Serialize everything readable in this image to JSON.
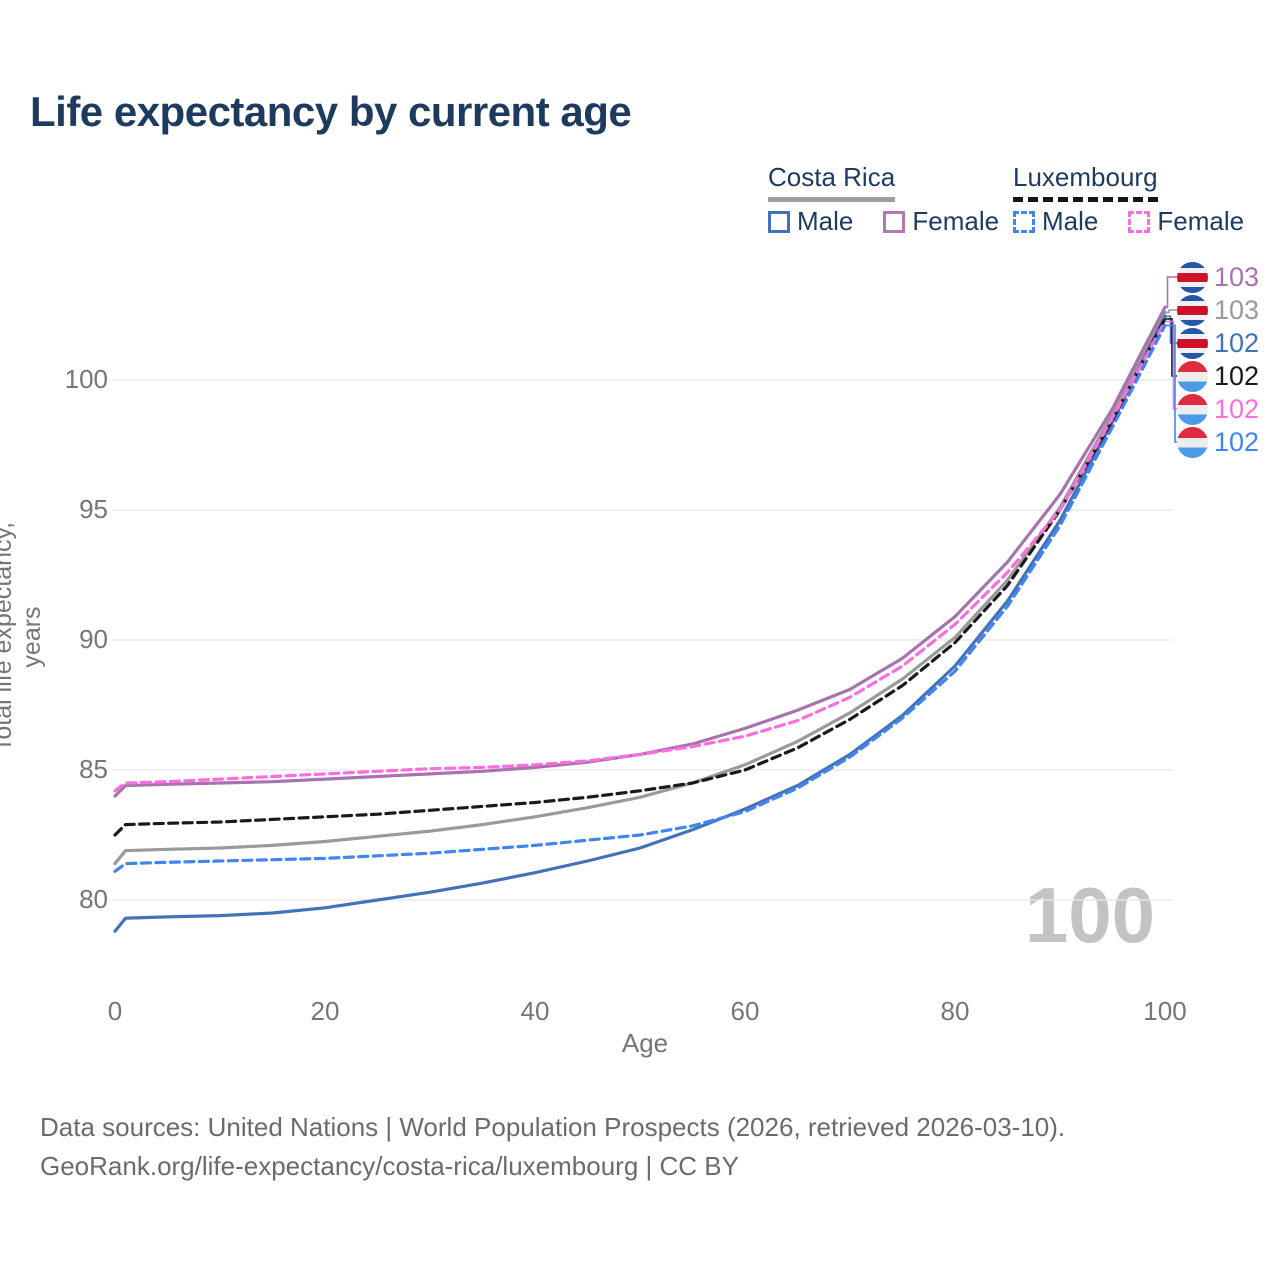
{
  "title": "Life expectancy by current age",
  "legend": {
    "groups": [
      {
        "label": "Costa Rica",
        "line_style": "solid",
        "underline_color": "#9e9e9e",
        "items": [
          {
            "label": "Male",
            "color": "#4273b8"
          },
          {
            "label": "Female",
            "color": "#b278b2"
          }
        ]
      },
      {
        "label": "Luxembourg",
        "line_style": "dashed",
        "underline_color": "#141414",
        "items": [
          {
            "label": "Male",
            "color": "#4285f0"
          },
          {
            "label": "Female",
            "color": "#fb6ee1"
          }
        ]
      }
    ]
  },
  "chart_data": {
    "type": "line",
    "title": "Life expectancy by current age",
    "xlabel": "Age",
    "ylabel": "Total life expectancy, years",
    "x_ticks": [
      0,
      20,
      40,
      60,
      80,
      100
    ],
    "y_ticks": [
      80,
      85,
      90,
      95,
      100
    ],
    "xlim": [
      0,
      100
    ],
    "ylim": [
      78,
      103.5
    ],
    "grid": "horizontal-only",
    "legend_position": "top-right",
    "x": [
      0,
      1,
      5,
      10,
      15,
      20,
      25,
      30,
      35,
      40,
      45,
      50,
      55,
      60,
      65,
      70,
      75,
      80,
      85,
      90,
      95,
      100
    ],
    "series": [
      {
        "id": "costa-rica-total",
        "name": "Costa Rica Both sexes",
        "country": "Costa Rica",
        "sex": "Both",
        "color": "#9a9a9a",
        "dashed": false,
        "values": [
          81.4,
          81.9,
          81.95,
          82.0,
          82.1,
          82.25,
          82.45,
          82.65,
          82.9,
          83.2,
          83.55,
          83.95,
          84.5,
          85.2,
          86.1,
          87.2,
          88.5,
          90.1,
          92.3,
          95.1,
          98.7,
          102.6
        ]
      },
      {
        "id": "costa-rica-female",
        "name": "Costa Rica Female",
        "country": "Costa Rica",
        "sex": "Female",
        "color": "#a872ae",
        "dashed": false,
        "values": [
          84.0,
          84.4,
          84.45,
          84.5,
          84.55,
          84.65,
          84.75,
          84.85,
          84.95,
          85.1,
          85.3,
          85.6,
          86.0,
          86.6,
          87.3,
          88.1,
          89.3,
          90.9,
          93.0,
          95.6,
          98.9,
          102.8
        ]
      },
      {
        "id": "costa-rica-male",
        "name": "Costa Rica Male",
        "country": "Costa Rica",
        "sex": "Male",
        "color": "#4273b8",
        "dashed": false,
        "values": [
          78.8,
          79.3,
          79.35,
          79.4,
          79.5,
          79.7,
          80.0,
          80.3,
          80.65,
          81.05,
          81.5,
          82.0,
          82.7,
          83.5,
          84.4,
          85.6,
          87.1,
          89.0,
          91.5,
          94.6,
          98.4,
          102.45
        ]
      },
      {
        "id": "luxembourg-total",
        "name": "Luxembourg Both sexes",
        "country": "Luxembourg",
        "sex": "Both",
        "color": "#1a1a1a",
        "dashed": true,
        "values": [
          82.5,
          82.9,
          82.95,
          83.0,
          83.1,
          83.2,
          83.3,
          83.45,
          83.6,
          83.75,
          83.95,
          84.2,
          84.5,
          85.0,
          85.85,
          86.95,
          88.25,
          89.9,
          92.1,
          95.0,
          98.45,
          102.35
        ]
      },
      {
        "id": "luxembourg-female",
        "name": "Luxembourg Female",
        "country": "Luxembourg",
        "sex": "Female",
        "color": "#fb6ee1",
        "dashed": true,
        "values": [
          84.2,
          84.5,
          84.55,
          84.65,
          84.75,
          84.85,
          84.95,
          85.05,
          85.1,
          85.2,
          85.35,
          85.6,
          85.9,
          86.3,
          86.9,
          87.8,
          89.0,
          90.6,
          92.6,
          95.0,
          98.55,
          102.25
        ]
      },
      {
        "id": "luxembourg-male",
        "name": "Luxembourg Male",
        "country": "Luxembourg",
        "sex": "Male",
        "color": "#4285f0",
        "dashed": true,
        "values": [
          81.1,
          81.4,
          81.45,
          81.5,
          81.55,
          81.6,
          81.7,
          81.8,
          81.95,
          82.1,
          82.3,
          82.5,
          82.85,
          83.4,
          84.3,
          85.5,
          87.0,
          88.8,
          91.3,
          94.4,
          98.2,
          102.1
        ]
      }
    ]
  },
  "end_labels": [
    {
      "value": "103",
      "series": 1,
      "flag": "costa_rica"
    },
    {
      "value": "103",
      "series": 0,
      "flag": "costa_rica"
    },
    {
      "value": "102",
      "series": 2,
      "flag": "costa_rica"
    },
    {
      "value": "102",
      "series": 3,
      "flag": "luxembourg"
    },
    {
      "value": "102",
      "series": 4,
      "flag": "luxembourg"
    },
    {
      "value": "102",
      "series": 5,
      "flag": "luxembourg"
    }
  ],
  "flags": {
    "costa_rica": {
      "name": "Costa Rica flag",
      "stripes": [
        [
          "#2457a7",
          0,
          19
        ],
        [
          "#eef0f2",
          19,
          35
        ],
        [
          "#ce1126",
          35,
          65
        ],
        [
          "#eef0f2",
          65,
          81
        ],
        [
          "#2457a7",
          81,
          100
        ]
      ]
    },
    "luxembourg": {
      "name": "Luxembourg flag",
      "stripes": [
        [
          "#e12a3f",
          0,
          35
        ],
        [
          "#ededed",
          35,
          66
        ],
        [
          "#4d9ae8",
          66,
          100
        ]
      ]
    }
  },
  "watermark": "100",
  "footer": {
    "line1": "Data sources: United Nations | World Population Prospects (2026, retrieved 2026-03-10).",
    "line2": "GeoRank.org/life-expectancy/costa-rica/luxembourg | CC BY"
  },
  "colors": {
    "title_text": "#1d3a5f",
    "axis_text": "#767676",
    "gridline": "#e7e7e7",
    "footer_text": "#6b6b6b",
    "watermark": "#c3c3c3"
  }
}
